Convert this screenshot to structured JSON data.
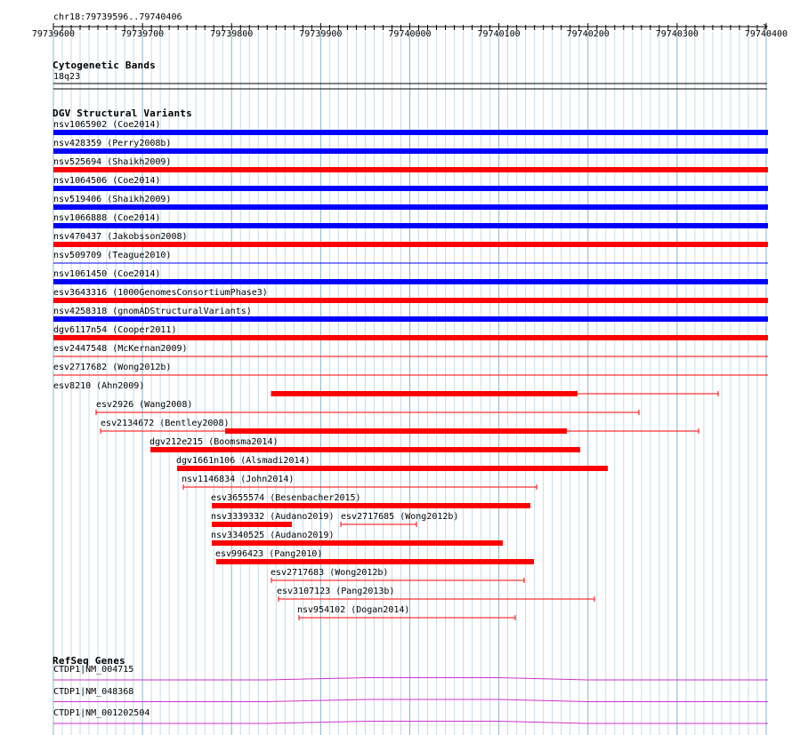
{
  "header": {
    "region_label": "chr18:79739596..79740406",
    "ticks": [
      "79739600",
      "79739700",
      "79739800",
      "79739900",
      "79740000",
      "79740100",
      "79740200",
      "79740300",
      "79740400"
    ]
  },
  "cytoband": {
    "title": "Cytogenetic Bands",
    "band": "18q23"
  },
  "dgv": {
    "title": "DGV Structural Variants",
    "full_rows": [
      {
        "label": "nsv1065902 (Coe2014)",
        "color": "#0000ff"
      },
      {
        "label": "nsv428359 (Perry2008b)",
        "color": "#0000ff"
      },
      {
        "label": "nsv525694 (Shaikh2009)",
        "color": "#ff0000"
      },
      {
        "label": "nsv1064506 (Coe2014)",
        "color": "#0000ff"
      },
      {
        "label": "nsv519406 (Shaikh2009)",
        "color": "#0000ff"
      },
      {
        "label": "nsv1066888 (Coe2014)",
        "color": "#0000ff"
      },
      {
        "label": "nsv470437 (Jakobsson2008)",
        "color": "#ff0000"
      },
      {
        "label": "nsv509709 (Teague2010)",
        "color": "#0000ff"
      },
      {
        "label": "nsv1061450 (Coe2014)",
        "color": "#0000ff"
      },
      {
        "label": "esv3643316 (1000GenomesConsortiumPhase3)",
        "color": "#ff0000"
      },
      {
        "label": "nsv4258318 (gnomADStructuralVariants)",
        "color": "#0000ff"
      },
      {
        "label": "dgv6117n54 (Cooper2011)",
        "color": "#ff0000"
      },
      {
        "label": "esv2447548 (McKernan2009)",
        "color": "#ff0000"
      },
      {
        "label": "esv2717682 (Wong2012b)",
        "color": "#ff0000"
      }
    ],
    "partial_rows": [
      {
        "label": "esv8210 (Ahn2009)"
      },
      {
        "label": "esv2926 (Wang2008)"
      },
      {
        "label": "esv2134672 (Bentley2008)"
      },
      {
        "label": "dgv212e215 (Boomsma2014)"
      },
      {
        "label": "dgv1661n106 (Alsmadi2014)"
      },
      {
        "label": "nsv1146834 (John2014)"
      },
      {
        "label": "esv3655574 (Besenbacher2015)"
      },
      {
        "label": "nsv3339332 (Audano2019)"
      },
      {
        "label": "esv2717685 (Wong2012b)"
      },
      {
        "label": "nsv3340525 (Audano2019)"
      },
      {
        "label": "esv996423 (Pang2010)"
      },
      {
        "label": "esv2717683 (Wong2012b)"
      },
      {
        "label": "esv3107123 (Pang2013b)"
      },
      {
        "label": "nsv954102 (Dogan2014)"
      }
    ],
    "colors": {
      "gain": "#0000ff",
      "loss": "#ff0000"
    }
  },
  "refseq": {
    "title": "RefSeq Genes",
    "genes": [
      {
        "label": "CTDP1|NM_004715",
        "color": "#cc33cc"
      },
      {
        "label": "CTDP1|NM_048368",
        "color": "#cc33cc"
      },
      {
        "label": "CTDP1|NM_001202504",
        "color": "#cc33cc"
      }
    ]
  }
}
